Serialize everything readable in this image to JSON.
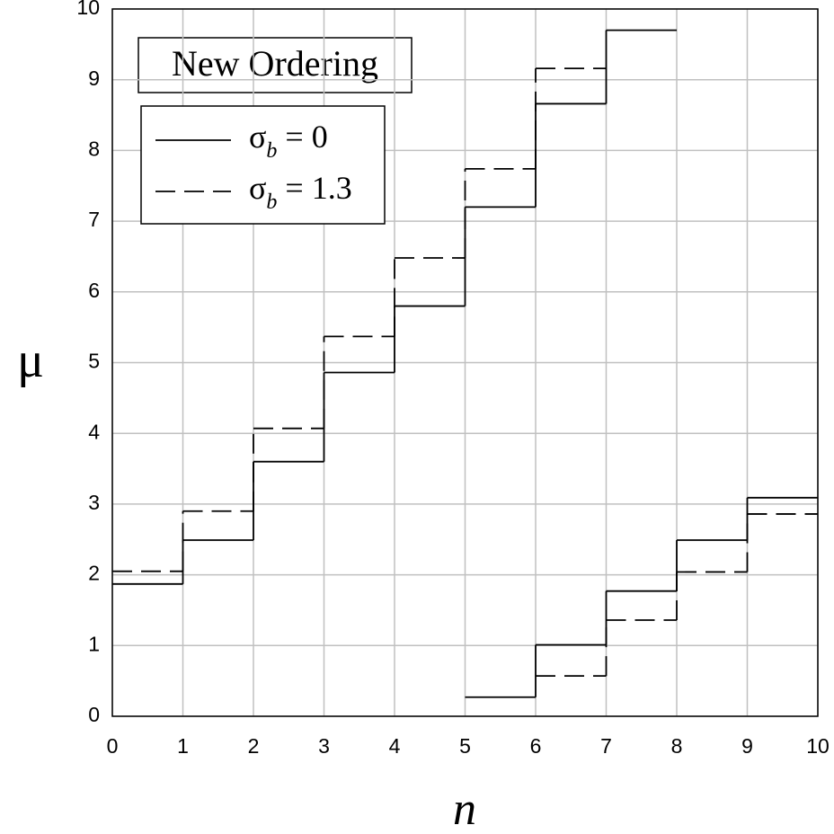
{
  "chart_data": {
    "type": "step",
    "xlabel": "n",
    "ylabel": "μ",
    "annotation": "New Ordering",
    "xlim": [
      0,
      10
    ],
    "ylim": [
      0,
      10
    ],
    "xticks": [
      0,
      1,
      2,
      3,
      4,
      5,
      6,
      7,
      8,
      9,
      10
    ],
    "yticks": [
      0,
      1,
      2,
      3,
      4,
      5,
      6,
      7,
      8,
      9,
      10
    ],
    "grid": true,
    "legend": "upper left",
    "series": [
      {
        "name": "σb = 0",
        "color": "#000000",
        "dash": "solid",
        "upper": [
          1.87,
          2.49,
          3.6,
          4.86,
          5.8,
          7.2,
          8.66,
          9.7,
          null,
          null
        ],
        "lower": [
          null,
          null,
          null,
          null,
          null,
          0.27,
          1.01,
          1.77,
          2.49,
          3.09
        ]
      },
      {
        "name": "σb = 1.3",
        "color": "#000000",
        "dash": "dashed",
        "upper": [
          2.05,
          2.9,
          4.07,
          5.37,
          6.48,
          7.74,
          9.16,
          null,
          null,
          null
        ],
        "lower": [
          null,
          null,
          null,
          null,
          null,
          null,
          0.57,
          1.36,
          2.04,
          2.86
        ]
      }
    ]
  }
}
